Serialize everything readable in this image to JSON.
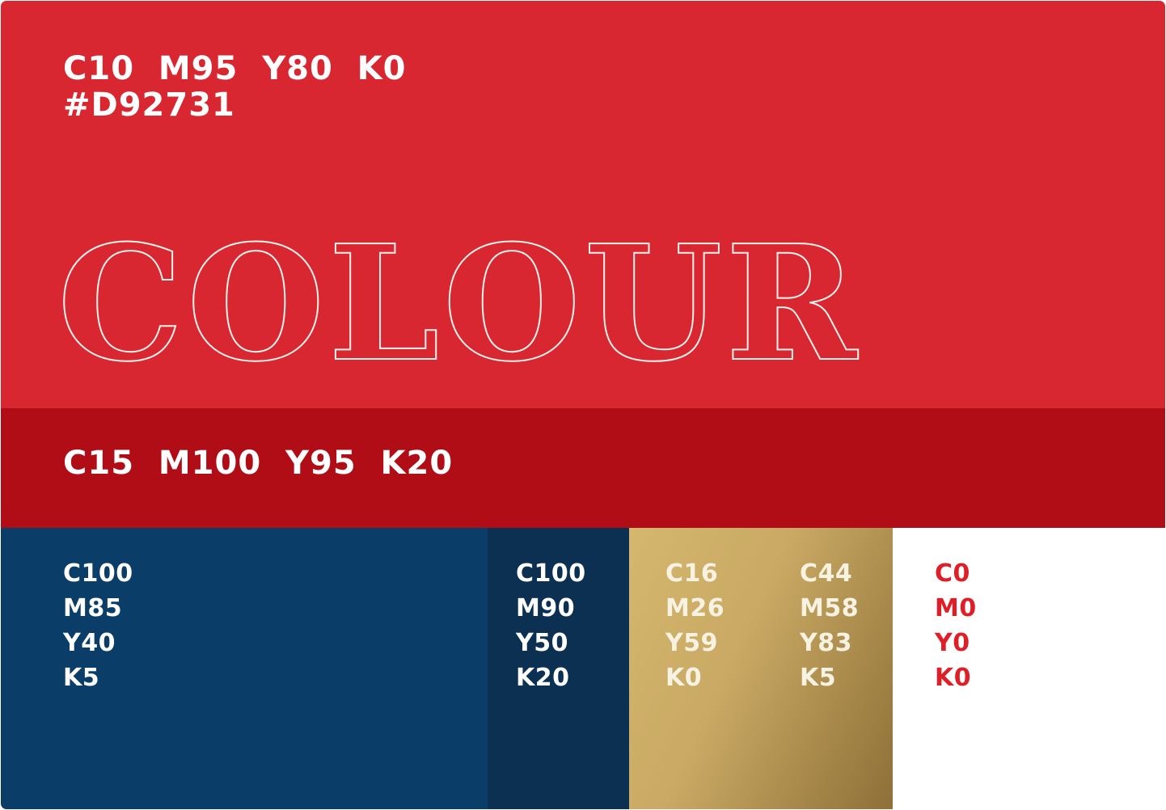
{
  "poster": {
    "primary": {
      "cmyk": "C10  M95  Y80  K0",
      "hex": "#D92731",
      "headline": "COLOUR"
    },
    "secondary": {
      "cmyk": "C15  M100  Y95  K20"
    },
    "swatches": {
      "navy": {
        "lines": [
          "C100",
          "M85",
          "Y40",
          "K5"
        ]
      },
      "dark_navy": {
        "lines": [
          "C100",
          "M90",
          "Y50",
          "K20"
        ]
      },
      "gold_a": {
        "lines": [
          "C16",
          "M26",
          "Y59",
          "K0"
        ]
      },
      "gold_b": {
        "lines": [
          "C44",
          "M58",
          "Y83",
          "K5"
        ]
      },
      "white": {
        "lines": [
          "C0",
          "M0",
          "Y0",
          "K0"
        ]
      }
    },
    "colors": {
      "primary_red": "#D92731",
      "secondary_dark_red": "#B10D17",
      "navy": "#0A3E69",
      "dark_navy": "#0C3052",
      "gold_gradient_light": "#D5B76F",
      "gold_gradient_dark": "#8E7038",
      "white": "#FFFFFF",
      "white_swatch_text_red": "#DE1F28",
      "label_text_white": "#FFFFFF"
    }
  }
}
